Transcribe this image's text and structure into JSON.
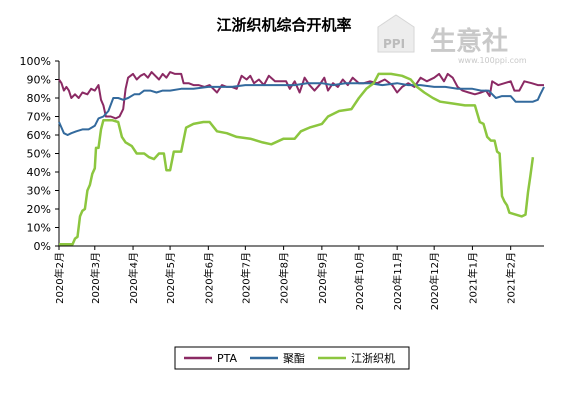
{
  "chart_data": {
    "type": "line",
    "title": "江浙织机综合开机率",
    "xlabel": "",
    "ylabel": "",
    "ylim": [
      0,
      100
    ],
    "yticks": [
      "0%",
      "10%",
      "20%",
      "30%",
      "40%",
      "50%",
      "60%",
      "70%",
      "80%",
      "90%",
      "100%"
    ],
    "x_range": [
      "2020-02-01",
      "2021-02-28"
    ],
    "xticks": [
      {
        "label": "2020年2月",
        "date": "2020-02-01"
      },
      {
        "label": "2020年3月",
        "date": "2020-03-01"
      },
      {
        "label": "2020年4月",
        "date": "2020-04-01"
      },
      {
        "label": "2020年5月",
        "date": "2020-05-01"
      },
      {
        "label": "2020年6月",
        "date": "2020-06-01"
      },
      {
        "label": "2020年7月",
        "date": "2020-07-01"
      },
      {
        "label": "2020年8月",
        "date": "2020-08-01"
      },
      {
        "label": "2020年9月",
        "date": "2020-09-01"
      },
      {
        "label": "2020年10月",
        "date": "2020-10-01"
      },
      {
        "label": "2020年11月",
        "date": "2020-11-01"
      },
      {
        "label": "2020年12月",
        "date": "2020-12-01"
      },
      {
        "label": "2021年1月",
        "date": "2021-01-01"
      },
      {
        "label": "2021年2月",
        "date": "2021-02-01"
      }
    ],
    "grid": false,
    "legend_position": "bottom",
    "series": [
      {
        "name": "PTA",
        "color": "#8b2a64",
        "points": [
          [
            "2020-02-01",
            90
          ],
          [
            "2020-02-03",
            88
          ],
          [
            "2020-02-05",
            84
          ],
          [
            "2020-02-07",
            86
          ],
          [
            "2020-02-09",
            84
          ],
          [
            "2020-02-11",
            80
          ],
          [
            "2020-02-14",
            82
          ],
          [
            "2020-02-17",
            80
          ],
          [
            "2020-02-20",
            83
          ],
          [
            "2020-02-24",
            82
          ],
          [
            "2020-02-27",
            85
          ],
          [
            "2020-03-01",
            84
          ],
          [
            "2020-03-04",
            87
          ],
          [
            "2020-03-06",
            79
          ],
          [
            "2020-03-08",
            76
          ],
          [
            "2020-03-10",
            70
          ],
          [
            "2020-03-14",
            70
          ],
          [
            "2020-03-18",
            69
          ],
          [
            "2020-03-21",
            70
          ],
          [
            "2020-03-24",
            74
          ],
          [
            "2020-03-26",
            85
          ],
          [
            "2020-03-28",
            91
          ],
          [
            "2020-04-01",
            93
          ],
          [
            "2020-04-04",
            90
          ],
          [
            "2020-04-07",
            92
          ],
          [
            "2020-04-10",
            93
          ],
          [
            "2020-04-13",
            91
          ],
          [
            "2020-04-16",
            94
          ],
          [
            "2020-04-19",
            92
          ],
          [
            "2020-04-22",
            90
          ],
          [
            "2020-04-25",
            93
          ],
          [
            "2020-04-28",
            91
          ],
          [
            "2020-05-01",
            94
          ],
          [
            "2020-05-05",
            93
          ],
          [
            "2020-05-10",
            93
          ],
          [
            "2020-05-12",
            88
          ],
          [
            "2020-05-16",
            88
          ],
          [
            "2020-05-20",
            87
          ],
          [
            "2020-05-24",
            87
          ],
          [
            "2020-05-29",
            86
          ],
          [
            "2020-06-02",
            87
          ],
          [
            "2020-06-05",
            85
          ],
          [
            "2020-06-08",
            83
          ],
          [
            "2020-06-12",
            87
          ],
          [
            "2020-06-16",
            86
          ],
          [
            "2020-06-20",
            86
          ],
          [
            "2020-06-24",
            85
          ],
          [
            "2020-06-28",
            92
          ],
          [
            "2020-07-02",
            90
          ],
          [
            "2020-07-05",
            92
          ],
          [
            "2020-07-08",
            88
          ],
          [
            "2020-07-12",
            90
          ],
          [
            "2020-07-16",
            87
          ],
          [
            "2020-07-20",
            92
          ],
          [
            "2020-07-25",
            89
          ],
          [
            "2020-07-30",
            89
          ],
          [
            "2020-08-03",
            89
          ],
          [
            "2020-08-06",
            85
          ],
          [
            "2020-08-10",
            89
          ],
          [
            "2020-08-14",
            83
          ],
          [
            "2020-08-18",
            91
          ],
          [
            "2020-08-22",
            87
          ],
          [
            "2020-08-26",
            84
          ],
          [
            "2020-08-30",
            87
          ],
          [
            "2020-09-03",
            91
          ],
          [
            "2020-09-06",
            84
          ],
          [
            "2020-09-10",
            88
          ],
          [
            "2020-09-14",
            86
          ],
          [
            "2020-09-18",
            90
          ],
          [
            "2020-09-22",
            87
          ],
          [
            "2020-09-26",
            91
          ],
          [
            "2020-10-01",
            88
          ],
          [
            "2020-10-05",
            88
          ],
          [
            "2020-10-10",
            89
          ],
          [
            "2020-10-16",
            88
          ],
          [
            "2020-10-22",
            90
          ],
          [
            "2020-10-28",
            87
          ],
          [
            "2020-11-01",
            83
          ],
          [
            "2020-11-05",
            86
          ],
          [
            "2020-11-10",
            88
          ],
          [
            "2020-11-15",
            86
          ],
          [
            "2020-11-20",
            91
          ],
          [
            "2020-11-25",
            89
          ],
          [
            "2020-12-01",
            91
          ],
          [
            "2020-12-05",
            93
          ],
          [
            "2020-12-09",
            89
          ],
          [
            "2020-12-12",
            93
          ],
          [
            "2020-12-16",
            91
          ],
          [
            "2020-12-20",
            86
          ],
          [
            "2020-12-24",
            84
          ],
          [
            "2020-12-29",
            83
          ],
          [
            "2021-01-03",
            82
          ],
          [
            "2021-01-08",
            83
          ],
          [
            "2021-01-12",
            84
          ],
          [
            "2021-01-15",
            81
          ],
          [
            "2021-01-17",
            89
          ],
          [
            "2021-01-22",
            87
          ],
          [
            "2021-01-27",
            88
          ],
          [
            "2021-02-01",
            89
          ],
          [
            "2021-02-04",
            84
          ],
          [
            "2021-02-08",
            84
          ],
          [
            "2021-02-12",
            89
          ],
          [
            "2021-02-18",
            88
          ],
          [
            "2021-02-23",
            87
          ],
          [
            "2021-02-28",
            87
          ]
        ]
      },
      {
        "name": "聚酯",
        "color": "#336a9d",
        "points": [
          [
            "2020-02-01",
            67
          ],
          [
            "2020-02-03",
            64
          ],
          [
            "2020-02-05",
            61
          ],
          [
            "2020-02-08",
            60
          ],
          [
            "2020-02-11",
            61
          ],
          [
            "2020-02-15",
            62
          ],
          [
            "2020-02-20",
            63
          ],
          [
            "2020-02-25",
            63
          ],
          [
            "2020-03-01",
            65
          ],
          [
            "2020-03-04",
            69
          ],
          [
            "2020-03-08",
            70
          ],
          [
            "2020-03-12",
            73
          ],
          [
            "2020-03-16",
            80
          ],
          [
            "2020-03-20",
            80
          ],
          [
            "2020-03-24",
            79
          ],
          [
            "2020-03-28",
            80
          ],
          [
            "2020-04-02",
            82
          ],
          [
            "2020-04-06",
            82
          ],
          [
            "2020-04-10",
            84
          ],
          [
            "2020-04-15",
            84
          ],
          [
            "2020-04-20",
            83
          ],
          [
            "2020-04-25",
            84
          ],
          [
            "2020-05-01",
            84
          ],
          [
            "2020-05-10",
            85
          ],
          [
            "2020-05-20",
            85
          ],
          [
            "2020-06-01",
            86
          ],
          [
            "2020-06-10",
            86
          ],
          [
            "2020-06-20",
            86
          ],
          [
            "2020-07-01",
            87
          ],
          [
            "2020-07-10",
            87
          ],
          [
            "2020-07-20",
            87
          ],
          [
            "2020-08-01",
            87
          ],
          [
            "2020-08-10",
            87
          ],
          [
            "2020-08-20",
            88
          ],
          [
            "2020-09-01",
            88
          ],
          [
            "2020-09-10",
            87
          ],
          [
            "2020-09-20",
            88
          ],
          [
            "2020-10-01",
            88
          ],
          [
            "2020-10-10",
            88
          ],
          [
            "2020-10-20",
            87
          ],
          [
            "2020-11-01",
            88
          ],
          [
            "2020-11-10",
            87
          ],
          [
            "2020-11-20",
            87
          ],
          [
            "2020-12-01",
            86
          ],
          [
            "2020-12-10",
            86
          ],
          [
            "2020-12-20",
            85
          ],
          [
            "2021-01-01",
            85
          ],
          [
            "2021-01-08",
            84
          ],
          [
            "2021-01-14",
            84
          ],
          [
            "2021-01-20",
            80
          ],
          [
            "2021-01-25",
            81
          ],
          [
            "2021-02-01",
            81
          ],
          [
            "2021-02-05",
            78
          ],
          [
            "2021-02-12",
            78
          ],
          [
            "2021-02-19",
            78
          ],
          [
            "2021-02-23",
            79
          ],
          [
            "2021-02-25",
            82
          ],
          [
            "2021-02-28",
            86
          ]
        ]
      },
      {
        "name": "江浙织机",
        "color": "#8cc63f",
        "points": [
          [
            "2020-02-01",
            1
          ],
          [
            "2020-02-07",
            1
          ],
          [
            "2020-02-12",
            1
          ],
          [
            "2020-02-14",
            4
          ],
          [
            "2020-02-16",
            5
          ],
          [
            "2020-02-18",
            16
          ],
          [
            "2020-02-20",
            19
          ],
          [
            "2020-02-22",
            20
          ],
          [
            "2020-02-24",
            30
          ],
          [
            "2020-02-26",
            33
          ],
          [
            "2020-02-28",
            39
          ],
          [
            "2020-03-01",
            42
          ],
          [
            "2020-03-02",
            53
          ],
          [
            "2020-03-04",
            53
          ],
          [
            "2020-03-06",
            63
          ],
          [
            "2020-03-08",
            68
          ],
          [
            "2020-03-15",
            68
          ],
          [
            "2020-03-20",
            67
          ],
          [
            "2020-03-23",
            59
          ],
          [
            "2020-03-26",
            56
          ],
          [
            "2020-03-31",
            54
          ],
          [
            "2020-04-04",
            50
          ],
          [
            "2020-04-10",
            50
          ],
          [
            "2020-04-14",
            48
          ],
          [
            "2020-04-18",
            47
          ],
          [
            "2020-04-22",
            50
          ],
          [
            "2020-04-26",
            50
          ],
          [
            "2020-04-28",
            41
          ],
          [
            "2020-05-01",
            41
          ],
          [
            "2020-05-04",
            51
          ],
          [
            "2020-05-10",
            51
          ],
          [
            "2020-05-14",
            64
          ],
          [
            "2020-05-20",
            66
          ],
          [
            "2020-05-28",
            67
          ],
          [
            "2020-06-02",
            67
          ],
          [
            "2020-06-08",
            62
          ],
          [
            "2020-06-16",
            61
          ],
          [
            "2020-06-24",
            59
          ],
          [
            "2020-07-05",
            58
          ],
          [
            "2020-07-15",
            56
          ],
          [
            "2020-07-22",
            55
          ],
          [
            "2020-08-01",
            58
          ],
          [
            "2020-08-10",
            58
          ],
          [
            "2020-08-15",
            62
          ],
          [
            "2020-08-22",
            64
          ],
          [
            "2020-09-01",
            66
          ],
          [
            "2020-09-06",
            70
          ],
          [
            "2020-09-15",
            73
          ],
          [
            "2020-09-25",
            74
          ],
          [
            "2020-10-01",
            80
          ],
          [
            "2020-10-07",
            85
          ],
          [
            "2020-10-13",
            88
          ],
          [
            "2020-10-17",
            93
          ],
          [
            "2020-10-27",
            93
          ],
          [
            "2020-11-05",
            92
          ],
          [
            "2020-11-12",
            90
          ],
          [
            "2020-11-17",
            86
          ],
          [
            "2020-11-23",
            83
          ],
          [
            "2020-11-30",
            80
          ],
          [
            "2020-12-06",
            78
          ],
          [
            "2020-12-16",
            77
          ],
          [
            "2020-12-26",
            76
          ],
          [
            "2021-01-03",
            76
          ],
          [
            "2021-01-07",
            67
          ],
          [
            "2021-01-10",
            66
          ],
          [
            "2021-01-13",
            59
          ],
          [
            "2021-01-16",
            57
          ],
          [
            "2021-01-19",
            57
          ],
          [
            "2021-01-21",
            51
          ],
          [
            "2021-01-23",
            50
          ],
          [
            "2021-01-25",
            27
          ],
          [
            "2021-01-27",
            24
          ],
          [
            "2021-01-29",
            22
          ],
          [
            "2021-01-31",
            18
          ],
          [
            "2021-02-05",
            17
          ],
          [
            "2021-02-10",
            16
          ],
          [
            "2021-02-13",
            17
          ],
          [
            "2021-02-15",
            29
          ],
          [
            "2021-02-17",
            38
          ],
          [
            "2021-02-19",
            48
          ]
        ]
      }
    ]
  },
  "watermark": {
    "logo_text": "PPI",
    "brand": "生意社",
    "url": "www.100ppi.com"
  }
}
